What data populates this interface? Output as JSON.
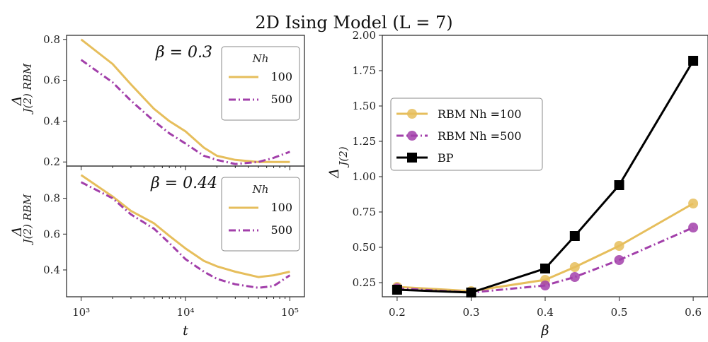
{
  "figure": {
    "title": "2D Ising Model (L = 7)"
  },
  "colors": {
    "rbm100": "#E6BE5C",
    "rbm500": "#A23FAA",
    "bp": "#000000"
  },
  "chart_data": [
    {
      "type": "line",
      "annotation": "β = 0.3",
      "xscale": "log",
      "xlim": [
        1000,
        100000
      ],
      "ylim": [
        0.18,
        0.82
      ],
      "yticks": [
        0.2,
        0.4,
        0.6,
        0.8
      ],
      "ytick_labels": [
        "0.2",
        "0.4",
        "0.6",
        "0.8"
      ],
      "ylabel": "Δ J(2) RBM",
      "legend": {
        "title": "Nh",
        "position": "top-right"
      },
      "series": [
        {
          "name": "100",
          "style": "solid",
          "x": [
            1000,
            2000,
            3000,
            5000,
            7000,
            10000,
            15000,
            20000,
            30000,
            50000,
            70000,
            100000
          ],
          "y": [
            0.8,
            0.68,
            0.58,
            0.46,
            0.4,
            0.35,
            0.27,
            0.23,
            0.21,
            0.2,
            0.2,
            0.2
          ]
        },
        {
          "name": "500",
          "style": "dashdot",
          "x": [
            1000,
            2000,
            3000,
            5000,
            7000,
            10000,
            15000,
            20000,
            30000,
            50000,
            70000,
            100000
          ],
          "y": [
            0.7,
            0.59,
            0.5,
            0.4,
            0.34,
            0.29,
            0.23,
            0.21,
            0.19,
            0.2,
            0.22,
            0.25
          ]
        }
      ]
    },
    {
      "type": "line",
      "annotation": "β = 0.44",
      "xscale": "log",
      "xlim": [
        1000,
        100000
      ],
      "xlabel": "t",
      "xtick_labels": [
        "10³",
        "10⁴",
        "10⁵"
      ],
      "xticks": [
        1000,
        10000,
        100000
      ],
      "ylim": [
        0.25,
        0.98
      ],
      "yticks": [
        0.4,
        0.6,
        0.8
      ],
      "ytick_labels": [
        "0.4",
        "0.6",
        "0.8"
      ],
      "ylabel": "Δ J(2) RBM",
      "legend": {
        "title": "Nh",
        "position": "top-right"
      },
      "series": [
        {
          "name": "100",
          "style": "solid",
          "x": [
            1000,
            2000,
            3000,
            5000,
            7000,
            10000,
            15000,
            20000,
            30000,
            50000,
            70000,
            100000
          ],
          "y": [
            0.93,
            0.81,
            0.73,
            0.66,
            0.59,
            0.52,
            0.45,
            0.42,
            0.39,
            0.36,
            0.37,
            0.39
          ]
        },
        {
          "name": "500",
          "style": "dashdot",
          "x": [
            1000,
            2000,
            3000,
            5000,
            7000,
            10000,
            15000,
            20000,
            30000,
            50000,
            70000,
            100000
          ],
          "y": [
            0.89,
            0.8,
            0.71,
            0.63,
            0.55,
            0.46,
            0.39,
            0.35,
            0.32,
            0.3,
            0.31,
            0.37
          ]
        }
      ]
    },
    {
      "type": "line",
      "xlim": [
        0.18,
        0.62
      ],
      "xticks": [
        0.2,
        0.3,
        0.4,
        0.5,
        0.6
      ],
      "xtick_labels": [
        "0.2",
        "0.3",
        "0.4",
        "0.5",
        "0.6"
      ],
      "xlabel": "β",
      "ylim": [
        0.15,
        2.0
      ],
      "yticks": [
        0.25,
        0.5,
        0.75,
        1.0,
        1.25,
        1.5,
        1.75,
        2.0
      ],
      "ytick_labels": [
        "0.25",
        "0.50",
        "0.75",
        "1.00",
        "1.25",
        "1.50",
        "1.75",
        "2.00"
      ],
      "ylabel": "Δ J(2)",
      "legend": {
        "position": "center-left"
      },
      "series": [
        {
          "name": "RBM Nh =100",
          "marker": "circle",
          "style": "solid",
          "x": [
            0.2,
            0.3,
            0.4,
            0.44,
            0.5,
            0.6
          ],
          "y": [
            0.22,
            0.19,
            0.27,
            0.36,
            0.51,
            0.81
          ]
        },
        {
          "name": "RBM Nh =500",
          "marker": "circle",
          "style": "dashdot",
          "x": [
            0.2,
            0.3,
            0.4,
            0.44,
            0.5,
            0.6
          ],
          "y": [
            0.21,
            0.18,
            0.23,
            0.29,
            0.41,
            0.64
          ]
        },
        {
          "name": "BP",
          "marker": "square",
          "style": "solid",
          "x": [
            0.2,
            0.3,
            0.4,
            0.44,
            0.5,
            0.6
          ],
          "y": [
            0.2,
            0.18,
            0.35,
            0.58,
            0.94,
            1.82
          ]
        }
      ]
    }
  ]
}
